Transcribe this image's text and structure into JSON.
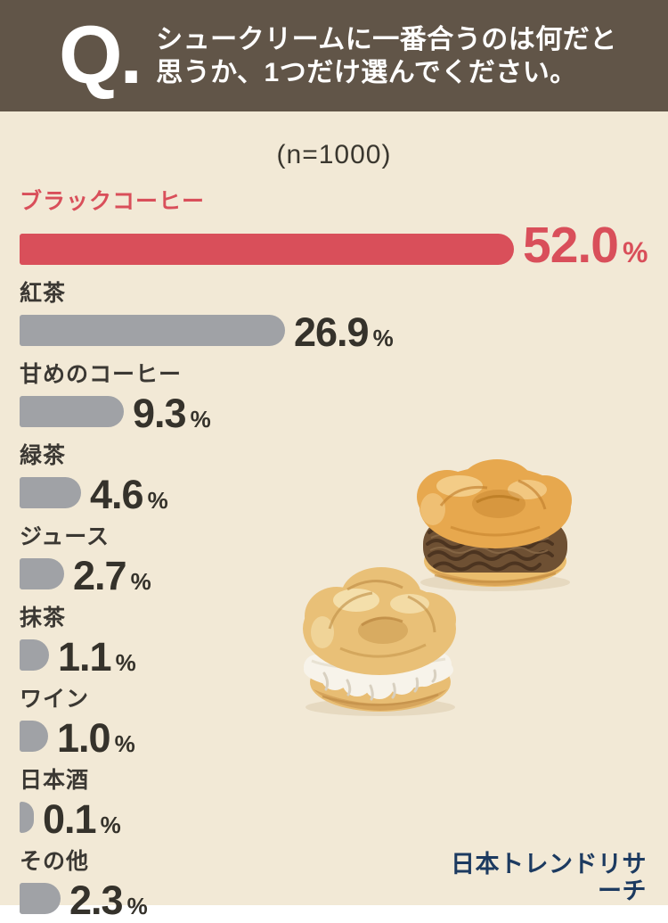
{
  "header": {
    "q_label": "Q.",
    "question_line1": "シュークリームに一番合うのは何だと",
    "question_line2": "思うか、1つだけ選んでください。"
  },
  "sample_size_label": "(n=1000)",
  "chart_data": {
    "type": "bar",
    "orientation": "horizontal",
    "title": "シュークリームに一番合うのは何だと思うか、1つだけ選んでください。",
    "sample_size_n": 1000,
    "unit": "%",
    "categories": [
      "ブラックコーヒー",
      "紅茶",
      "甘めのコーヒー",
      "緑茶",
      "ジュース",
      "抹茶",
      "ワイン",
      "日本酒",
      "その他"
    ],
    "values": [
      52.0,
      26.9,
      9.3,
      4.6,
      2.7,
      1.1,
      1.0,
      0.1,
      2.3
    ],
    "value_labels": [
      "52.0",
      "26.9",
      "9.3",
      "4.6",
      "2.7",
      "1.1",
      "1.0",
      "0.1",
      "2.3"
    ],
    "highlight_index": 0,
    "xlim": [
      0,
      55
    ],
    "grid": false,
    "legend": false
  },
  "colors": {
    "background": "#f2e9d6",
    "header_background": "#615548",
    "highlight_bar": "#d94f5a",
    "default_bar": "#a0a2a6",
    "text_dark": "#35322b",
    "logo_navy": "#1c3a60"
  },
  "illustration": {
    "name": "cream-puffs",
    "description": "two cream puffs, one chocolate-filled, one whipped-cream-filled"
  },
  "footer": {
    "logo_text": "日本トレンドリサーチ"
  }
}
